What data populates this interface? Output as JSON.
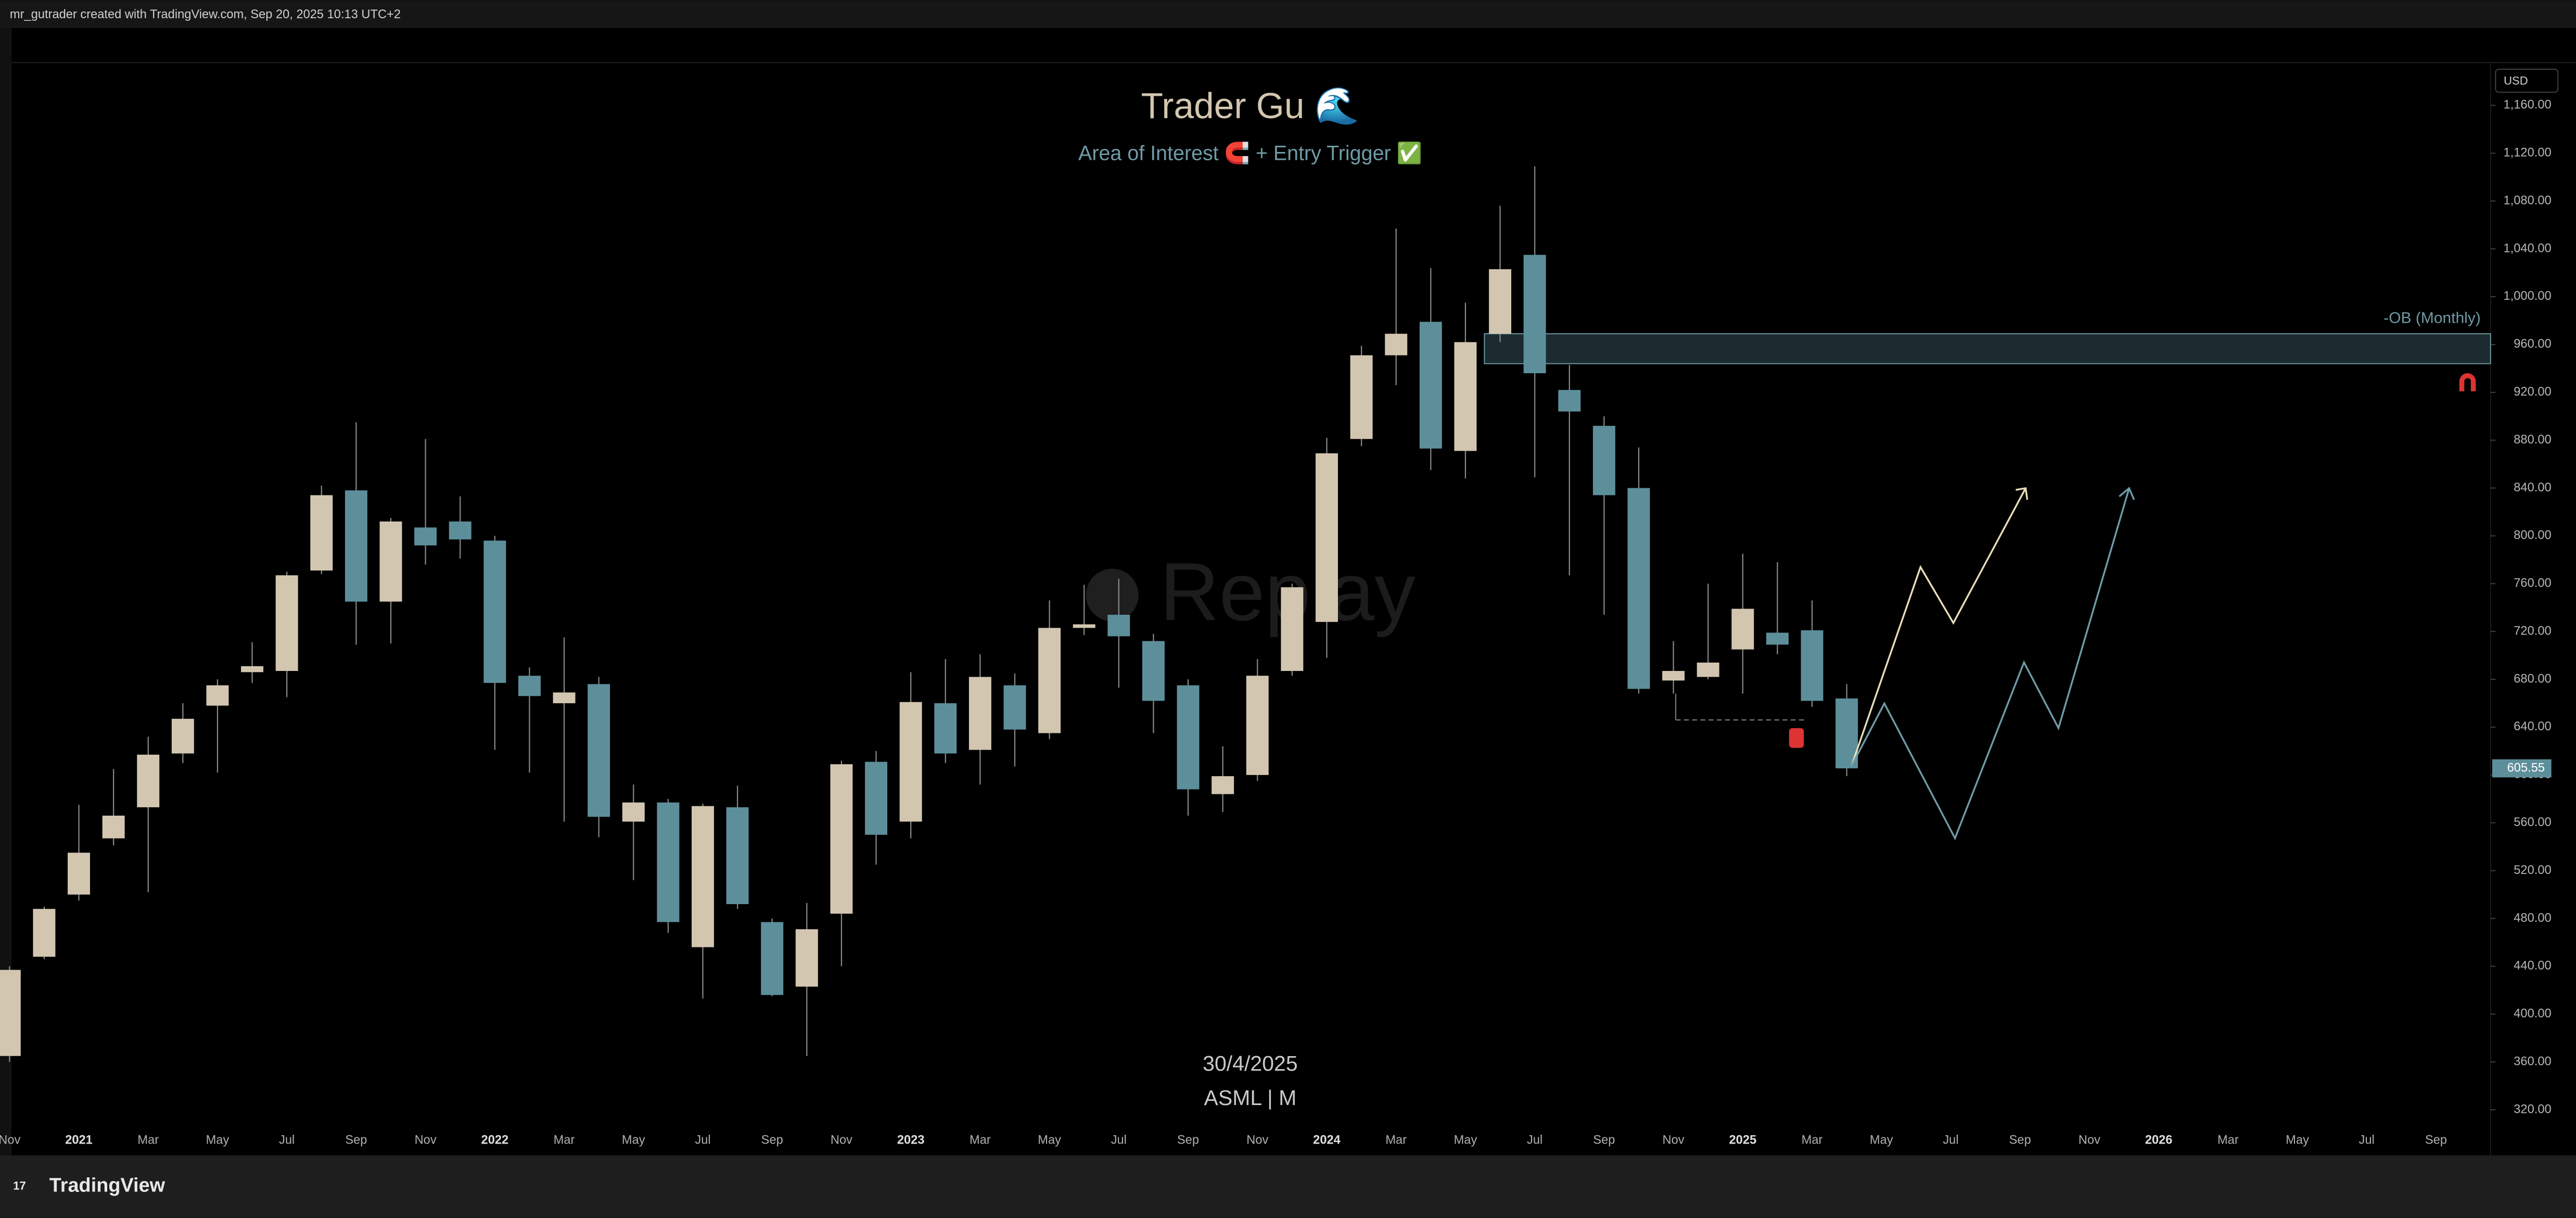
{
  "header": {
    "credit": "mr_gutrader created with TradingView.com, Sep 20, 2025 10:13 UTC+2"
  },
  "footer": {
    "brand": "TradingView"
  },
  "chart_data": {
    "type": "candlestick",
    "title": "Trader Gu 🌊",
    "subtitle": "Area of Interest 🧲 + Entry Trigger ✅",
    "watermark": "Replay",
    "date_label": "30/4/2025",
    "symbol_label": "ASML | M",
    "currency": "USD",
    "up_color": "#d3c6b0",
    "down_color": "#5d8f9b",
    "categories": [
      "Nov",
      null,
      "2021",
      null,
      "Mar",
      null,
      "May",
      null,
      "Jul",
      null,
      "Sep",
      null,
      "Nov",
      null,
      "2022",
      null,
      "Mar",
      null,
      "May",
      null,
      "Jul",
      null,
      "Sep",
      null,
      "Nov",
      null,
      "2023",
      null,
      "Mar",
      null,
      "May",
      null,
      "Jul",
      null,
      "Sep",
      null,
      "Nov",
      null,
      "2024",
      null,
      "Mar",
      null,
      "May",
      null,
      "Jul",
      null,
      "Sep",
      null,
      "Nov",
      null,
      "2025",
      null,
      "Mar",
      null,
      "May",
      null,
      "Jul",
      null,
      "Sep",
      null,
      "Nov",
      null,
      "2026",
      null,
      "Mar",
      null,
      "May",
      null,
      "Jul",
      null,
      "Sep"
    ],
    "open": [
      365,
      448,
      500,
      547,
      573,
      618,
      658,
      686,
      687,
      771,
      838,
      745,
      807,
      812,
      796,
      683,
      660,
      676,
      561,
      577,
      456,
      573,
      477,
      423,
      484,
      611,
      561,
      660,
      621,
      675,
      635,
      723,
      734,
      712,
      675,
      584,
      600,
      687,
      728,
      881,
      951,
      979,
      871,
      969,
      1035,
      922,
      892,
      840,
      679,
      682,
      705,
      719,
      721,
      664,
      null,
      null,
      null,
      null,
      null,
      null,
      null,
      null,
      null,
      null,
      null,
      null,
      null,
      null,
      null,
      null,
      null
    ],
    "high": [
      440,
      490,
      575,
      605,
      632,
      660,
      680,
      711,
      770,
      842,
      895,
      815,
      881,
      833,
      800,
      690,
      715,
      682,
      592,
      580,
      576,
      591,
      480,
      493,
      612,
      620,
      686,
      697,
      701,
      685,
      746,
      759,
      764,
      718,
      680,
      624,
      697,
      760,
      882,
      959,
      1057,
      1024,
      995,
      1076,
      1109,
      943,
      900,
      874,
      712,
      760,
      785,
      778,
      746,
      676,
      null,
      null,
      null,
      null,
      null,
      null,
      null,
      null,
      null,
      null,
      null,
      null,
      null,
      null,
      null,
      null,
      null
    ],
    "low": [
      360,
      446,
      495,
      541,
      502,
      610,
      602,
      677,
      665,
      768,
      709,
      710,
      776,
      781,
      621,
      602,
      561,
      548,
      512,
      468,
      413,
      488,
      415,
      365,
      440,
      525,
      547,
      610,
      592,
      607,
      630,
      717,
      673,
      635,
      566,
      569,
      595,
      683,
      698,
      875,
      926,
      855,
      848,
      962,
      849,
      767,
      734,
      668,
      668,
      680,
      668,
      701,
      657,
      599,
      null,
      null,
      null,
      null,
      null,
      null,
      null,
      null,
      null,
      null,
      null,
      null,
      null,
      null,
      null,
      null,
      null
    ],
    "close": [
      437,
      488,
      535,
      566,
      617,
      647,
      675,
      691,
      767,
      834,
      745,
      812,
      792,
      797,
      677,
      666,
      669,
      565,
      577,
      477,
      574,
      492,
      416,
      471,
      609,
      550,
      661,
      618,
      682,
      638,
      723,
      726,
      716,
      662,
      588,
      599,
      683,
      757,
      869,
      951,
      969,
      873,
      962,
      1023,
      936,
      904,
      834,
      672,
      687,
      694,
      739,
      709,
      662,
      605.55,
      null,
      null,
      null,
      null,
      null,
      null,
      null,
      null,
      null,
      null,
      null,
      null,
      null,
      null,
      null,
      null,
      null
    ],
    "ob_zone": {
      "label": "-OB (Monthly)",
      "start": 43,
      "low": 944,
      "high": 969
    },
    "ylim": [
      286,
      1193
    ],
    "yticks": [
      {
        "value": 320,
        "label": "320.00"
      },
      {
        "value": 360,
        "label": "360.00"
      },
      {
        "value": 400,
        "label": "400.00"
      },
      {
        "value": 440,
        "label": "440.00"
      },
      {
        "value": 480,
        "label": "480.00"
      },
      {
        "value": 520,
        "label": "520.00"
      },
      {
        "value": 560,
        "label": "560.00"
      },
      {
        "value": 600,
        "label": "600.00"
      },
      {
        "value": 640,
        "label": "640.00"
      },
      {
        "value": 680,
        "label": "680.00"
      },
      {
        "value": 720,
        "label": "720.00"
      },
      {
        "value": 760,
        "label": "760.00"
      },
      {
        "value": 800,
        "label": "800.00"
      },
      {
        "value": 840,
        "label": "840.00"
      },
      {
        "value": 880,
        "label": "880.00"
      },
      {
        "value": 920,
        "label": "920.00"
      },
      {
        "value": 960,
        "label": "960.00"
      },
      {
        "value": 1000,
        "label": "1,000.00"
      },
      {
        "value": 1040,
        "label": "1,040.00"
      },
      {
        "value": 1080,
        "label": "1,080.00"
      },
      {
        "value": 1120,
        "label": "1,120.00"
      },
      {
        "value": 1160,
        "label": "1,160.00"
      }
    ],
    "grid": false
  }
}
